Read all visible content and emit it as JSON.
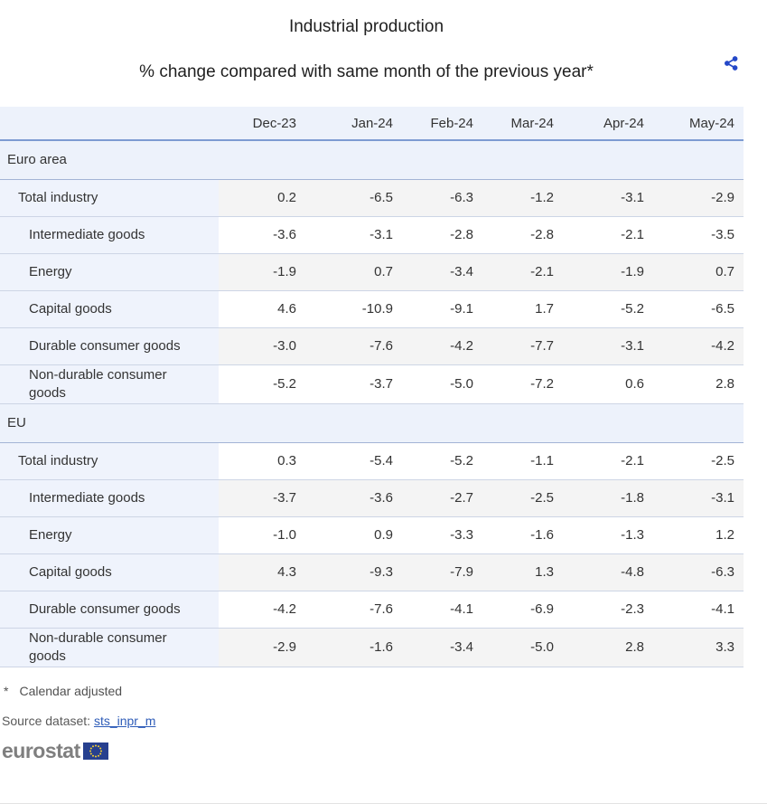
{
  "header": {
    "title": "Industrial production",
    "subtitle": "% change compared with same month of the previous year*"
  },
  "icons": {
    "share": "share-icon",
    "eu_flag": "eu-flag-icon"
  },
  "colors": {
    "header_bg": "#edf2fb",
    "stripe_bg": "#f4f4f4",
    "header_divider": "#7d9bd2",
    "row_border": "#cdd5e5",
    "share_icon": "#2448c8",
    "link": "#2e5cb8",
    "logo_gray": "#7f7f7f",
    "flag_blue": "#27408f",
    "flag_stars": "#f8d12e"
  },
  "chart_data": {
    "type": "table",
    "columns": [
      "Dec-23",
      "Jan-24",
      "Feb-24",
      "Mar-24",
      "Apr-24",
      "May-24"
    ],
    "sections": [
      {
        "label": "Euro area",
        "rows": [
          {
            "label": "Total industry",
            "indent": 1,
            "values": [
              "0.2",
              "-6.5",
              "-6.3",
              "-1.2",
              "-3.1",
              "-2.9"
            ]
          },
          {
            "label": "Intermediate goods",
            "indent": 2,
            "values": [
              "-3.6",
              "-3.1",
              "-2.8",
              "-2.8",
              "-2.1",
              "-3.5"
            ]
          },
          {
            "label": "Energy",
            "indent": 2,
            "values": [
              "-1.9",
              "0.7",
              "-3.4",
              "-2.1",
              "-1.9",
              "0.7"
            ]
          },
          {
            "label": "Capital goods",
            "indent": 2,
            "values": [
              "4.6",
              "-10.9",
              "-9.1",
              "1.7",
              "-5.2",
              "-6.5"
            ]
          },
          {
            "label": "Durable consumer goods",
            "indent": 2,
            "values": [
              "-3.0",
              "-7.6",
              "-4.2",
              "-7.7",
              "-3.1",
              "-4.2"
            ]
          },
          {
            "label": "Non-durable consumer goods",
            "indent": 2,
            "values": [
              "-5.2",
              "-3.7",
              "-5.0",
              "-7.2",
              "0.6",
              "2.8"
            ]
          }
        ]
      },
      {
        "label": "EU",
        "rows": [
          {
            "label": "Total industry",
            "indent": 1,
            "values": [
              "0.3",
              "-5.4",
              "-5.2",
              "-1.1",
              "-2.1",
              "-2.5"
            ]
          },
          {
            "label": "Intermediate goods",
            "indent": 2,
            "values": [
              "-3.7",
              "-3.6",
              "-2.7",
              "-2.5",
              "-1.8",
              "-3.1"
            ]
          },
          {
            "label": "Energy",
            "indent": 2,
            "values": [
              "-1.0",
              "0.9",
              "-3.3",
              "-1.6",
              "-1.3",
              "1.2"
            ]
          },
          {
            "label": "Capital goods",
            "indent": 2,
            "values": [
              "4.3",
              "-9.3",
              "-7.9",
              "1.3",
              "-4.8",
              "-6.3"
            ]
          },
          {
            "label": "Durable consumer goods",
            "indent": 2,
            "values": [
              "-4.2",
              "-7.6",
              "-4.1",
              "-6.9",
              "-2.3",
              "-4.1"
            ]
          },
          {
            "label": "Non-durable consumer goods",
            "indent": 2,
            "values": [
              "-2.9",
              "-1.6",
              "-3.4",
              "-5.0",
              "2.8",
              "3.3"
            ]
          }
        ]
      }
    ]
  },
  "footer": {
    "footnote_marker": "*",
    "footnote_text": "Calendar adjusted",
    "source_label": "Source dataset:",
    "source_link": "sts_inpr_m",
    "logo_text": "eurostat"
  }
}
